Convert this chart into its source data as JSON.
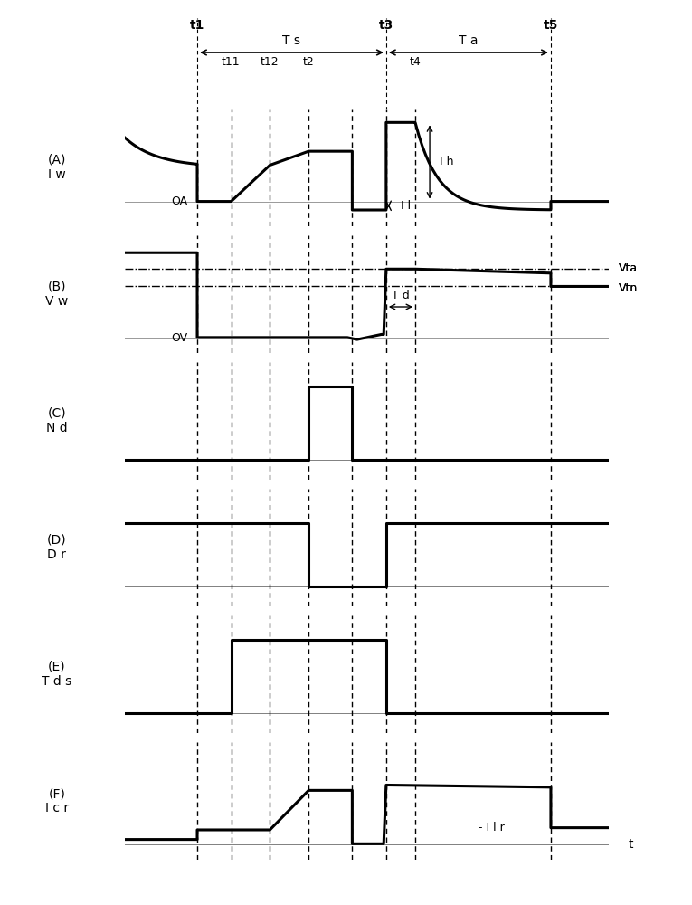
{
  "t1": 0.15,
  "t11": 0.22,
  "t12": 0.3,
  "t2": 0.38,
  "t21": 0.47,
  "t3": 0.54,
  "t4": 0.6,
  "t5": 0.88,
  "panel_labels": [
    "(A)\nI w",
    "(B)\nV w",
    "(C)\nN d",
    "(D)\nD r",
    "(E)\nT d s",
    "(F)\nI c r"
  ],
  "background": "#ffffff",
  "line_color": "#000000"
}
